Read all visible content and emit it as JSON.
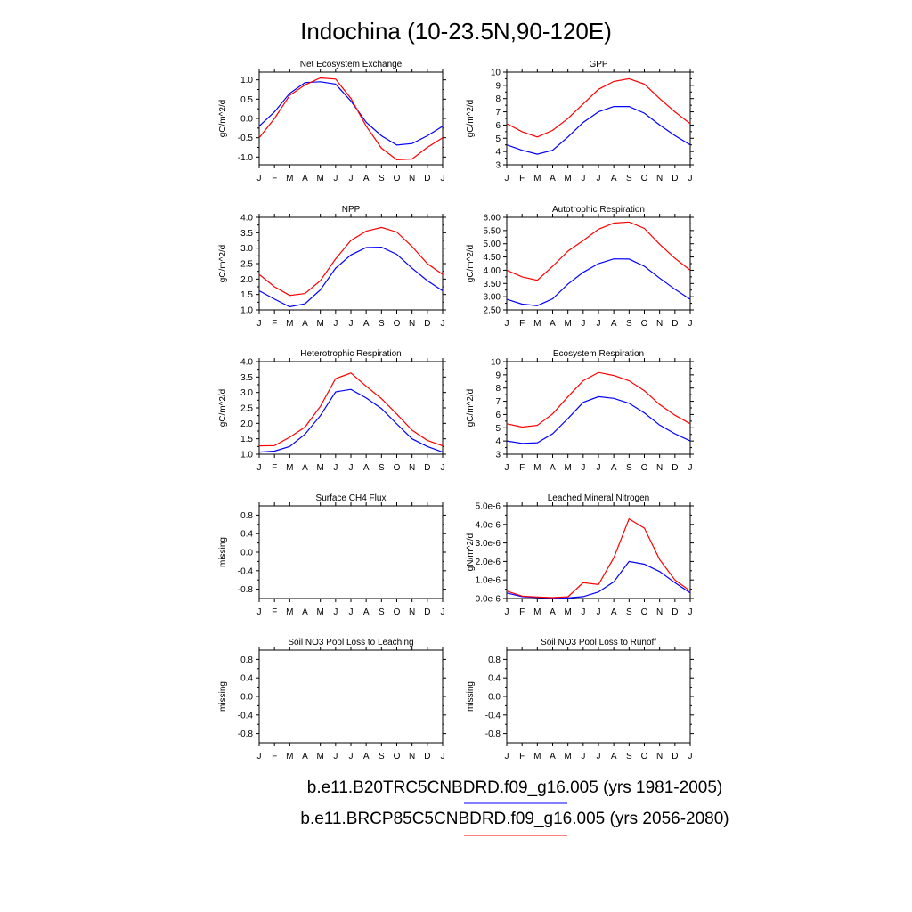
{
  "title": "Indochina (10-23.5N,90-120E)",
  "months": [
    "J",
    "F",
    "M",
    "A",
    "M",
    "J",
    "J",
    "A",
    "S",
    "O",
    "N",
    "D",
    "J"
  ],
  "legend": [
    {
      "label": "b.e11.B20TRC5CNBDRD.f09_g16.005 (yrs 1981-2005)",
      "color": "#0000ff"
    },
    {
      "label": "b.e11.BRCP85C5CNBDRD.f09_g16.005 (yrs 2056-2080)",
      "color": "#ff0000"
    }
  ],
  "chart_data": [
    {
      "type": "line",
      "title": "Net Ecosystem Exchange",
      "ylabel": "gC/m^2/d",
      "ylim": [
        -1.2,
        1.2
      ],
      "yticks": [
        -1.0,
        -0.5,
        0.0,
        0.5,
        1.0
      ],
      "yticklabels": [
        "-1.0",
        "-0.5",
        "0.0",
        "0.5",
        "1.0"
      ],
      "series": [
        {
          "name": "b.e11.B20TRC5CNBDRD.f09_g16.005 (yrs 1981-2005)",
          "color": "#0000ff",
          "values": [
            -0.2,
            0.17,
            0.65,
            0.93,
            0.95,
            0.89,
            0.45,
            -0.1,
            -0.45,
            -0.69,
            -0.65,
            -0.45,
            -0.2
          ]
        },
        {
          "name": "b.e11.BRCP85C5CNBDRD.f09_g16.005 (yrs 2056-2080)",
          "color": "#ff0000",
          "values": [
            -0.5,
            0.0,
            0.6,
            0.87,
            1.05,
            1.02,
            0.52,
            -0.2,
            -0.77,
            -1.07,
            -1.05,
            -0.75,
            -0.5
          ]
        }
      ]
    },
    {
      "type": "line",
      "title": "GPP",
      "ylabel": "gC/m^2/d",
      "ylim": [
        3,
        10
      ],
      "yticks": [
        3,
        4,
        5,
        6,
        7,
        8,
        9,
        10
      ],
      "yticklabels": [
        "3",
        "4",
        "5",
        "6",
        "7",
        "8",
        "9",
        "10"
      ],
      "series": [
        {
          "name": "b.e11.B20TRC5CNBDRD.f09_g16.005 (yrs 1981-2005)",
          "color": "#0000ff",
          "values": [
            4.5,
            4.1,
            3.8,
            4.1,
            5.1,
            6.2,
            7.0,
            7.4,
            7.4,
            6.9,
            6.0,
            5.2,
            4.5
          ]
        },
        {
          "name": "b.e11.BRCP85C5CNBDRD.f09_g16.005 (yrs 2056-2080)",
          "color": "#ff0000",
          "values": [
            6.1,
            5.5,
            5.1,
            5.6,
            6.5,
            7.6,
            8.7,
            9.3,
            9.5,
            9.1,
            8.0,
            7.0,
            6.1
          ]
        }
      ]
    },
    {
      "type": "line",
      "title": "NPP",
      "ylabel": "gC/m^2/d",
      "ylim": [
        1.0,
        4.0
      ],
      "yticks": [
        1.0,
        1.5,
        2.0,
        2.5,
        3.0,
        3.5,
        4.0
      ],
      "yticklabels": [
        "1.0",
        "1.5",
        "2.0",
        "2.5",
        "3.0",
        "3.5",
        "4.0"
      ],
      "series": [
        {
          "name": "b.e11.B20TRC5CNBDRD.f09_g16.005 (yrs 1981-2005)",
          "color": "#0000ff",
          "values": [
            1.62,
            1.35,
            1.1,
            1.2,
            1.65,
            2.35,
            2.78,
            3.02,
            3.03,
            2.8,
            2.35,
            1.95,
            1.62
          ]
        },
        {
          "name": "b.e11.BRCP85C5CNBDRD.f09_g16.005 (yrs 2056-2080)",
          "color": "#ff0000",
          "values": [
            2.15,
            1.75,
            1.47,
            1.53,
            1.95,
            2.65,
            3.25,
            3.55,
            3.67,
            3.52,
            3.05,
            2.5,
            2.15
          ]
        }
      ]
    },
    {
      "type": "line",
      "title": "Autotrophic Respiration",
      "ylabel": "gC/m^2/d",
      "ylim": [
        2.5,
        6.0
      ],
      "yticks": [
        2.5,
        3.0,
        3.5,
        4.0,
        4.5,
        5.0,
        5.5,
        6.0
      ],
      "yticklabels": [
        "2.50",
        "3.00",
        "3.50",
        "4.00",
        "4.50",
        "5.00",
        "5.50",
        "6.00"
      ],
      "series": [
        {
          "name": "b.e11.B20TRC5CNBDRD.f09_g16.005 (yrs 1981-2005)",
          "color": "#0000ff",
          "values": [
            2.9,
            2.72,
            2.66,
            2.92,
            3.48,
            3.92,
            4.25,
            4.43,
            4.42,
            4.15,
            3.7,
            3.28,
            2.9
          ]
        },
        {
          "name": "b.e11.BRCP85C5CNBDRD.f09_g16.005 (yrs 2056-2080)",
          "color": "#ff0000",
          "values": [
            4.0,
            3.75,
            3.62,
            4.15,
            4.72,
            5.12,
            5.55,
            5.78,
            5.82,
            5.58,
            4.98,
            4.45,
            4.0
          ]
        }
      ]
    },
    {
      "type": "line",
      "title": "Heterotrophic Respiration",
      "ylabel": "gC/m^2/d",
      "ylim": [
        1.0,
        4.0
      ],
      "yticks": [
        1.0,
        1.5,
        2.0,
        2.5,
        3.0,
        3.5,
        4.0
      ],
      "yticklabels": [
        "1.0",
        "1.5",
        "2.0",
        "2.5",
        "3.0",
        "3.5",
        "4.0"
      ],
      "series": [
        {
          "name": "b.e11.B20TRC5CNBDRD.f09_g16.005 (yrs 1981-2005)",
          "color": "#0000ff",
          "values": [
            1.07,
            1.1,
            1.25,
            1.65,
            2.25,
            3.02,
            3.1,
            2.82,
            2.48,
            1.98,
            1.5,
            1.25,
            1.07
          ]
        },
        {
          "name": "b.e11.BRCP85C5CNBDRD.f09_g16.005 (yrs 2056-2080)",
          "color": "#ff0000",
          "values": [
            1.27,
            1.28,
            1.55,
            1.88,
            2.55,
            3.45,
            3.63,
            3.2,
            2.8,
            2.3,
            1.78,
            1.45,
            1.27
          ]
        }
      ]
    },
    {
      "type": "line",
      "title": "Ecosystem Respiration",
      "ylabel": "gC/m^2/d",
      "ylim": [
        3,
        10
      ],
      "yticks": [
        3,
        4,
        5,
        6,
        7,
        8,
        9,
        10
      ],
      "yticklabels": [
        "3",
        "4",
        "5",
        "6",
        "7",
        "8",
        "9",
        "10"
      ],
      "series": [
        {
          "name": "b.e11.B20TRC5CNBDRD.f09_g16.005 (yrs 1981-2005)",
          "color": "#0000ff",
          "values": [
            4.0,
            3.82,
            3.87,
            4.55,
            5.7,
            6.92,
            7.35,
            7.22,
            6.85,
            6.12,
            5.2,
            4.55,
            4.0
          ]
        },
        {
          "name": "b.e11.BRCP85C5CNBDRD.f09_g16.005 (yrs 2056-2080)",
          "color": "#ff0000",
          "values": [
            5.3,
            5.05,
            5.18,
            6.05,
            7.35,
            8.55,
            9.18,
            8.95,
            8.55,
            7.8,
            6.75,
            5.95,
            5.3
          ]
        }
      ]
    },
    {
      "type": "line",
      "title": "Surface CH4 Flux",
      "ylabel": "missing",
      "ylim": [
        -1.0,
        1.0
      ],
      "yticks": [
        -0.8,
        -0.4,
        0.0,
        0.4,
        0.8
      ],
      "yticklabels": [
        "-0.8",
        "-0.4",
        "0.0",
        "0.4",
        "0.8"
      ],
      "series": []
    },
    {
      "type": "line",
      "title": "Leached Mineral Nitrogen",
      "ylabel": "gN/m^2/d",
      "ylim": [
        0,
        5e-06
      ],
      "yticks": [
        0,
        1e-06,
        2e-06,
        3e-06,
        4e-06,
        5e-06
      ],
      "yticklabels": [
        "0.0e-6",
        "1.0e-6",
        "2.0e-6",
        "3.0e-6",
        "4.0e-6",
        "5.0e-6"
      ],
      "series": [
        {
          "name": "b.e11.B20TRC5CNBDRD.f09_g16.005 (yrs 1981-2005)",
          "color": "#0000ff",
          "values": [
            3e-07,
            1e-07,
            6e-08,
            3e-08,
            3e-08,
            1e-07,
            3.5e-07,
            9e-07,
            2e-06,
            1.85e-06,
            1.45e-06,
            8.5e-07,
            3e-07
          ]
        },
        {
          "name": "b.e11.BRCP85C5CNBDRD.f09_g16.005 (yrs 2056-2080)",
          "color": "#ff0000",
          "values": [
            4e-07,
            1.3e-07,
            8e-08,
            5e-08,
            9e-08,
            8.5e-07,
            7.5e-07,
            2.2e-06,
            4.3e-06,
            3.8e-06,
            2.1e-06,
            1e-06,
            4e-07
          ]
        }
      ]
    },
    {
      "type": "line",
      "title": "Soil NO3 Pool Loss to Leaching",
      "ylabel": "missing",
      "ylim": [
        -1.0,
        1.0
      ],
      "yticks": [
        -0.8,
        -0.4,
        0.0,
        0.4,
        0.8
      ],
      "yticklabels": [
        "-0.8",
        "-0.4",
        "0.0",
        "0.4",
        "0.8"
      ],
      "series": []
    },
    {
      "type": "line",
      "title": "Soil NO3 Pool Loss to Runoff",
      "ylabel": "missing",
      "ylim": [
        -1.0,
        1.0
      ],
      "yticks": [
        -0.8,
        -0.4,
        0.0,
        0.4,
        0.8
      ],
      "yticklabels": [
        "-0.8",
        "-0.4",
        "0.0",
        "0.4",
        "0.8"
      ],
      "series": []
    }
  ]
}
